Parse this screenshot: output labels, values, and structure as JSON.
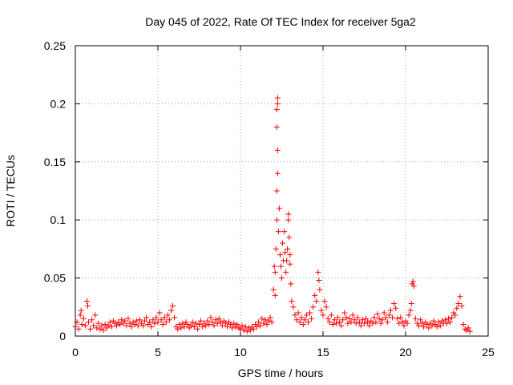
{
  "chart_data": {
    "type": "scatter",
    "title": "Day 045 of 2022, Rate Of TEC Index for receiver 5ga2",
    "xlabel": "GPS time / hours",
    "ylabel": "ROTI / TECUs",
    "xlim": [
      0,
      25
    ],
    "ylim": [
      0,
      0.25
    ],
    "x_ticks": [
      0,
      5,
      10,
      15,
      20,
      25
    ],
    "y_ticks": [
      0,
      0.05,
      0.1,
      0.15,
      0.2,
      0.25
    ],
    "x_tick_labels": [
      "0",
      "5",
      "10",
      "15",
      "20",
      "25"
    ],
    "y_tick_labels": [
      "0",
      "0.05",
      "0.1",
      "0.15",
      "0.2",
      "0.25"
    ],
    "grid": true,
    "marker": "+",
    "color": "#ff0000",
    "series": [
      {
        "name": "ROTI",
        "points": [
          [
            0.0,
            0.008
          ],
          [
            0.1,
            0.012
          ],
          [
            0.2,
            0.006
          ],
          [
            0.3,
            0.018
          ],
          [
            0.35,
            0.022
          ],
          [
            0.4,
            0.01
          ],
          [
            0.5,
            0.015
          ],
          [
            0.6,
            0.009
          ],
          [
            0.7,
            0.03
          ],
          [
            0.75,
            0.026
          ],
          [
            0.8,
            0.012
          ],
          [
            0.9,
            0.006
          ],
          [
            1.0,
            0.014
          ],
          [
            1.1,
            0.009
          ],
          [
            1.2,
            0.018
          ],
          [
            1.3,
            0.007
          ],
          [
            1.4,
            0.011
          ],
          [
            1.5,
            0.006
          ],
          [
            1.6,
            0.009
          ],
          [
            1.7,
            0.005
          ],
          [
            1.8,
            0.01
          ],
          [
            1.9,
            0.007
          ],
          [
            2.0,
            0.009
          ],
          [
            2.1,
            0.012
          ],
          [
            2.2,
            0.008
          ],
          [
            2.3,
            0.013
          ],
          [
            2.4,
            0.011
          ],
          [
            2.5,
            0.009
          ],
          [
            2.6,
            0.012
          ],
          [
            2.7,
            0.01
          ],
          [
            2.8,
            0.014
          ],
          [
            2.9,
            0.011
          ],
          [
            3.0,
            0.013
          ],
          [
            3.1,
            0.009
          ],
          [
            3.2,
            0.015
          ],
          [
            3.3,
            0.011
          ],
          [
            3.4,
            0.008
          ],
          [
            3.5,
            0.012
          ],
          [
            3.6,
            0.01
          ],
          [
            3.7,
            0.013
          ],
          [
            3.8,
            0.009
          ],
          [
            3.9,
            0.014
          ],
          [
            4.0,
            0.011
          ],
          [
            4.1,
            0.009
          ],
          [
            4.2,
            0.013
          ],
          [
            4.3,
            0.016
          ],
          [
            4.4,
            0.01
          ],
          [
            4.5,
            0.012
          ],
          [
            4.6,
            0.008
          ],
          [
            4.7,
            0.014
          ],
          [
            4.8,
            0.011
          ],
          [
            4.9,
            0.016
          ],
          [
            5.0,
            0.012
          ],
          [
            5.1,
            0.02
          ],
          [
            5.2,
            0.014
          ],
          [
            5.3,
            0.01
          ],
          [
            5.4,
            0.016
          ],
          [
            5.5,
            0.012
          ],
          [
            5.6,
            0.018
          ],
          [
            5.7,
            0.014
          ],
          [
            5.8,
            0.022
          ],
          [
            5.9,
            0.026
          ],
          [
            6.0,
            0.016
          ],
          [
            6.1,
            0.008
          ],
          [
            6.2,
            0.006
          ],
          [
            6.3,
            0.01
          ],
          [
            6.4,
            0.007
          ],
          [
            6.5,
            0.011
          ],
          [
            6.6,
            0.008
          ],
          [
            6.7,
            0.012
          ],
          [
            6.8,
            0.01
          ],
          [
            6.9,
            0.007
          ],
          [
            7.0,
            0.009
          ],
          [
            7.1,
            0.012
          ],
          [
            7.2,
            0.008
          ],
          [
            7.3,
            0.011
          ],
          [
            7.4,
            0.006
          ],
          [
            7.5,
            0.01
          ],
          [
            7.6,
            0.013
          ],
          [
            7.7,
            0.008
          ],
          [
            7.8,
            0.011
          ],
          [
            7.9,
            0.009
          ],
          [
            8.0,
            0.013
          ],
          [
            8.1,
            0.01
          ],
          [
            8.2,
            0.016
          ],
          [
            8.3,
            0.012
          ],
          [
            8.4,
            0.009
          ],
          [
            8.5,
            0.014
          ],
          [
            8.6,
            0.011
          ],
          [
            8.7,
            0.015
          ],
          [
            8.8,
            0.012
          ],
          [
            8.9,
            0.009
          ],
          [
            9.0,
            0.013
          ],
          [
            9.1,
            0.011
          ],
          [
            9.2,
            0.008
          ],
          [
            9.3,
            0.012
          ],
          [
            9.4,
            0.01
          ],
          [
            9.5,
            0.007
          ],
          [
            9.6,
            0.011
          ],
          [
            9.7,
            0.008
          ],
          [
            9.8,
            0.01
          ],
          [
            9.9,
            0.007
          ],
          [
            10.0,
            0.006
          ],
          [
            10.1,
            0.009
          ],
          [
            10.2,
            0.005
          ],
          [
            10.3,
            0.008
          ],
          [
            10.4,
            0.004
          ],
          [
            10.5,
            0.007
          ],
          [
            10.6,
            0.005
          ],
          [
            10.7,
            0.008
          ],
          [
            10.8,
            0.006
          ],
          [
            10.9,
            0.01
          ],
          [
            11.0,
            0.008
          ],
          [
            11.1,
            0.012
          ],
          [
            11.2,
            0.009
          ],
          [
            11.3,
            0.015
          ],
          [
            11.4,
            0.011
          ],
          [
            11.5,
            0.014
          ],
          [
            11.6,
            0.01
          ],
          [
            11.7,
            0.013
          ],
          [
            11.8,
            0.016
          ],
          [
            11.9,
            0.012
          ],
          [
            12.0,
            0.04
          ],
          [
            12.05,
            0.06
          ],
          [
            12.1,
            0.055
          ],
          [
            12.1,
            0.035
          ],
          [
            12.15,
            0.075
          ],
          [
            12.2,
            0.1
          ],
          [
            12.2,
            0.125
          ],
          [
            12.25,
            0.14
          ],
          [
            12.25,
            0.16
          ],
          [
            12.2,
            0.18
          ],
          [
            12.2,
            0.195
          ],
          [
            12.25,
            0.2
          ],
          [
            12.25,
            0.205
          ],
          [
            12.3,
            0.09
          ],
          [
            12.35,
            0.11
          ],
          [
            12.4,
            0.07
          ],
          [
            12.45,
            0.06
          ],
          [
            12.5,
            0.05
          ],
          [
            12.55,
            0.08
          ],
          [
            12.6,
            0.065
          ],
          [
            12.65,
            0.09
          ],
          [
            12.7,
            0.072
          ],
          [
            12.75,
            0.055
          ],
          [
            12.8,
            0.065
          ],
          [
            12.85,
            0.075
          ],
          [
            12.9,
            0.1
          ],
          [
            12.9,
            0.105
          ],
          [
            12.95,
            0.085
          ],
          [
            13.0,
            0.07
          ],
          [
            13.0,
            0.062
          ],
          [
            13.05,
            0.045
          ],
          [
            13.1,
            0.03
          ],
          [
            13.2,
            0.025
          ],
          [
            13.3,
            0.018
          ],
          [
            13.4,
            0.014
          ],
          [
            13.5,
            0.02
          ],
          [
            13.6,
            0.012
          ],
          [
            13.7,
            0.016
          ],
          [
            13.8,
            0.01
          ],
          [
            13.9,
            0.014
          ],
          [
            14.0,
            0.018
          ],
          [
            14.1,
            0.012
          ],
          [
            14.2,
            0.02
          ],
          [
            14.3,
            0.015
          ],
          [
            14.4,
            0.025
          ],
          [
            14.5,
            0.035
          ],
          [
            14.6,
            0.03
          ],
          [
            14.7,
            0.055
          ],
          [
            14.75,
            0.048
          ],
          [
            14.8,
            0.04
          ],
          [
            14.9,
            0.022
          ],
          [
            15.0,
            0.018
          ],
          [
            15.1,
            0.03
          ],
          [
            15.2,
            0.025
          ],
          [
            15.3,
            0.015
          ],
          [
            15.4,
            0.012
          ],
          [
            15.5,
            0.018
          ],
          [
            15.6,
            0.01
          ],
          [
            15.7,
            0.014
          ],
          [
            15.8,
            0.011
          ],
          [
            15.9,
            0.016
          ],
          [
            16.0,
            0.012
          ],
          [
            16.1,
            0.009
          ],
          [
            16.2,
            0.014
          ],
          [
            16.3,
            0.02
          ],
          [
            16.4,
            0.016
          ],
          [
            16.5,
            0.011
          ],
          [
            16.6,
            0.015
          ],
          [
            16.7,
            0.012
          ],
          [
            16.8,
            0.018
          ],
          [
            16.9,
            0.014
          ],
          [
            17.0,
            0.011
          ],
          [
            17.1,
            0.016
          ],
          [
            17.2,
            0.012
          ],
          [
            17.3,
            0.009
          ],
          [
            17.4,
            0.014
          ],
          [
            17.5,
            0.011
          ],
          [
            17.6,
            0.015
          ],
          [
            17.7,
            0.012
          ],
          [
            17.8,
            0.009
          ],
          [
            17.9,
            0.013
          ],
          [
            18.0,
            0.011
          ],
          [
            18.1,
            0.016
          ],
          [
            18.2,
            0.012
          ],
          [
            18.3,
            0.019
          ],
          [
            18.4,
            0.015
          ],
          [
            18.5,
            0.011
          ],
          [
            18.6,
            0.014
          ],
          [
            18.7,
            0.02
          ],
          [
            18.8,
            0.016
          ],
          [
            18.9,
            0.012
          ],
          [
            19.0,
            0.018
          ],
          [
            19.1,
            0.022
          ],
          [
            19.2,
            0.016
          ],
          [
            19.3,
            0.028
          ],
          [
            19.4,
            0.024
          ],
          [
            19.5,
            0.015
          ],
          [
            19.6,
            0.011
          ],
          [
            19.7,
            0.016
          ],
          [
            19.8,
            0.012
          ],
          [
            19.9,
            0.009
          ],
          [
            20.0,
            0.013
          ],
          [
            20.1,
            0.011
          ],
          [
            20.2,
            0.018
          ],
          [
            20.3,
            0.022
          ],
          [
            20.35,
            0.028
          ],
          [
            20.4,
            0.045
          ],
          [
            20.45,
            0.047
          ],
          [
            20.5,
            0.043
          ],
          [
            20.6,
            0.015
          ],
          [
            20.7,
            0.011
          ],
          [
            20.8,
            0.009
          ],
          [
            20.9,
            0.014
          ],
          [
            21.0,
            0.011
          ],
          [
            21.1,
            0.008
          ],
          [
            21.2,
            0.012
          ],
          [
            21.3,
            0.01
          ],
          [
            21.4,
            0.007
          ],
          [
            21.5,
            0.011
          ],
          [
            21.6,
            0.009
          ],
          [
            21.7,
            0.013
          ],
          [
            21.8,
            0.01
          ],
          [
            21.9,
            0.008
          ],
          [
            22.0,
            0.012
          ],
          [
            22.1,
            0.009
          ],
          [
            22.2,
            0.013
          ],
          [
            22.3,
            0.011
          ],
          [
            22.4,
            0.014
          ],
          [
            22.5,
            0.011
          ],
          [
            22.6,
            0.015
          ],
          [
            22.7,
            0.012
          ],
          [
            22.8,
            0.016
          ],
          [
            22.9,
            0.02
          ],
          [
            23.0,
            0.018
          ],
          [
            23.1,
            0.024
          ],
          [
            23.2,
            0.028
          ],
          [
            23.3,
            0.034
          ],
          [
            23.4,
            0.026
          ],
          [
            23.5,
            0.01
          ],
          [
            23.6,
            0.006
          ],
          [
            23.7,
            0.005
          ],
          [
            23.8,
            0.007
          ],
          [
            23.9,
            0.004
          ]
        ]
      }
    ]
  }
}
